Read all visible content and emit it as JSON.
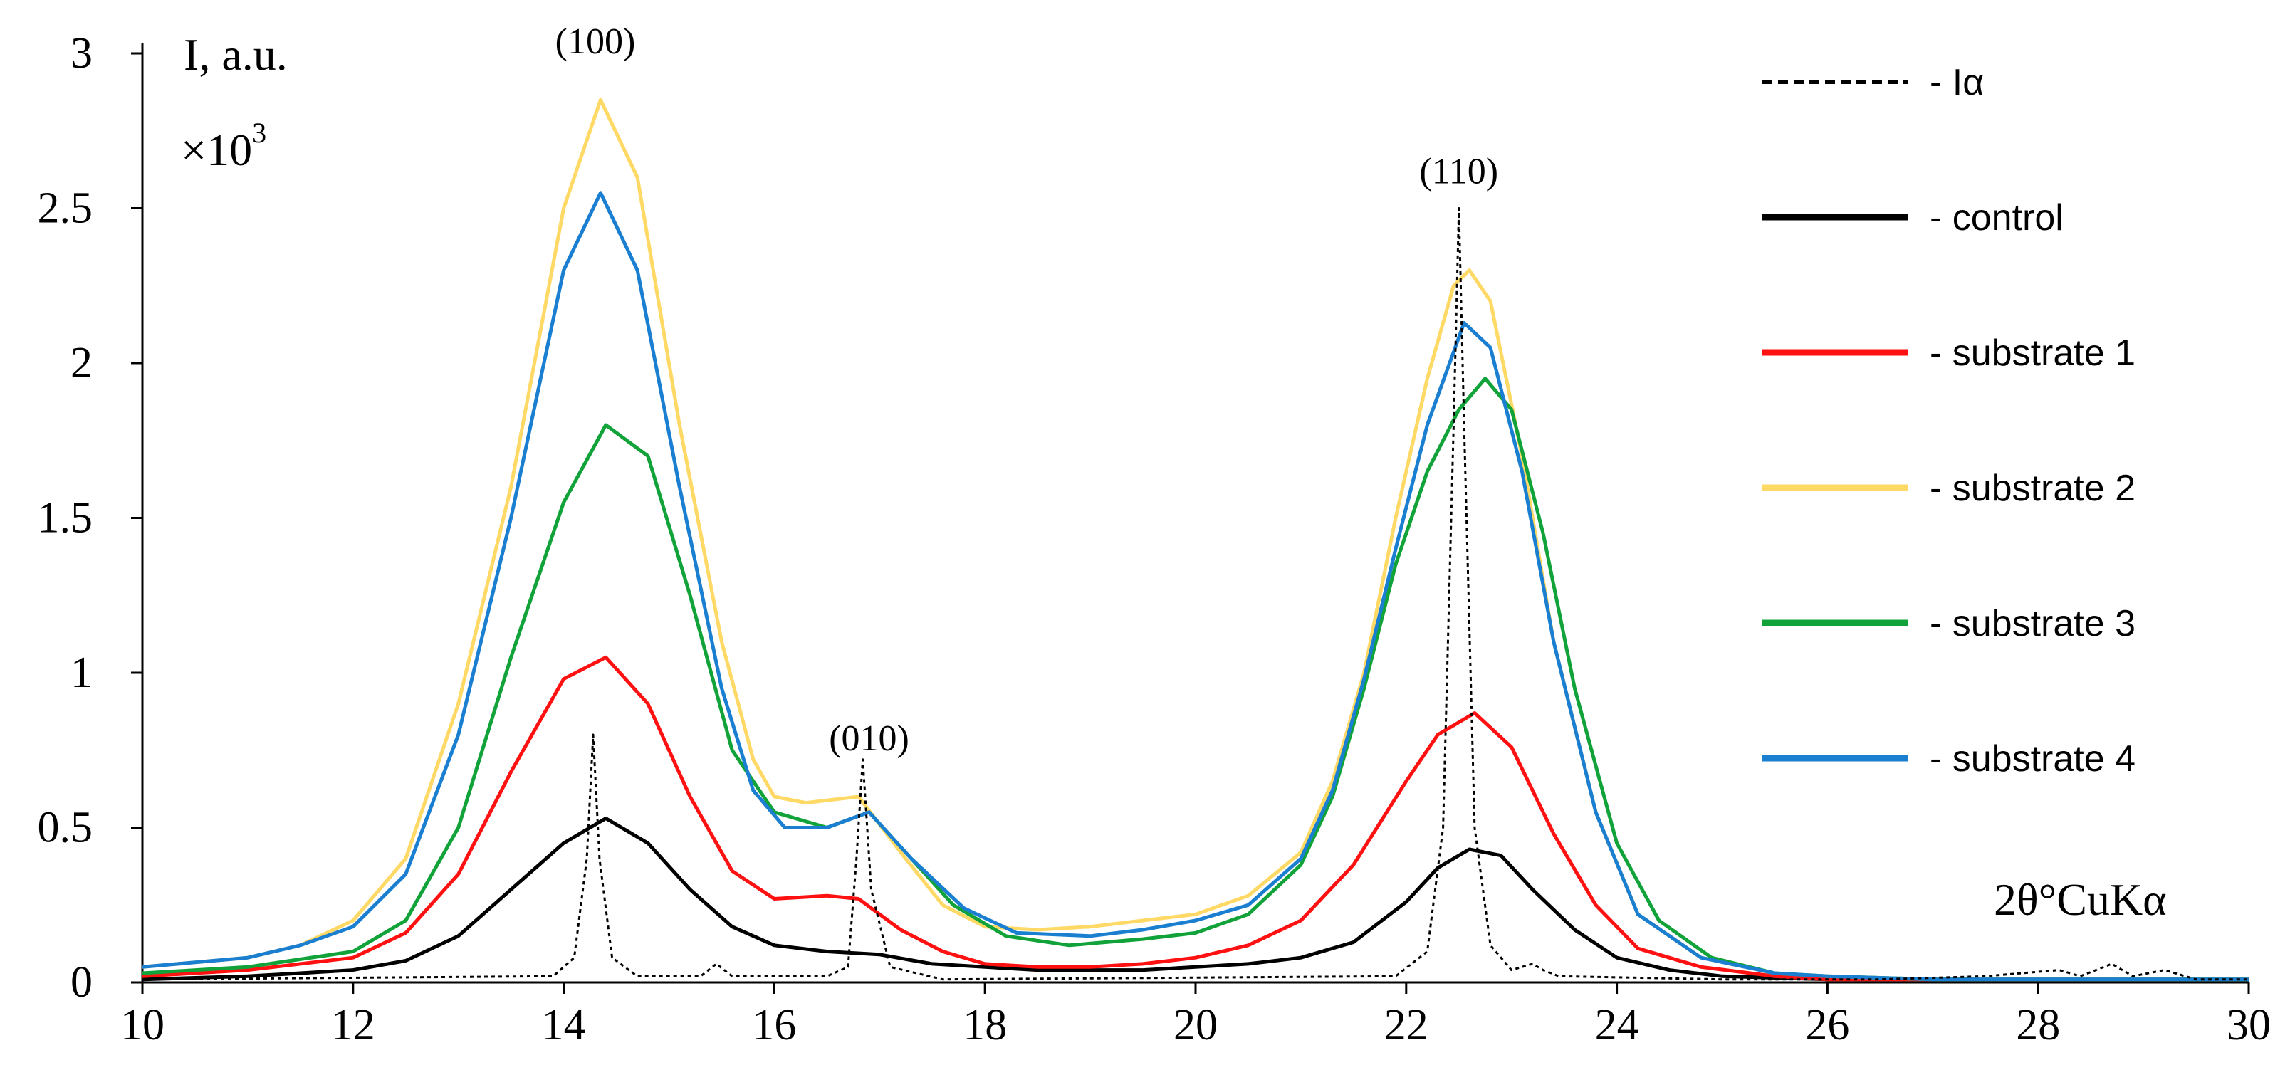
{
  "chart_data": {
    "type": "line",
    "ylabel": "I, a.u.",
    "yscale_label": "×10",
    "yscale_exponent": "3",
    "xlabel": "2θ°CuKα",
    "xlim": [
      10,
      30
    ],
    "ylim": [
      0,
      3
    ],
    "xticks": [
      "10",
      "12",
      "14",
      "16",
      "18",
      "20",
      "22",
      "24",
      "26",
      "28",
      "30"
    ],
    "yticks": [
      "0",
      "0.5",
      "1",
      "1.5",
      "2",
      "2.5",
      "3"
    ],
    "peak_labels": [
      {
        "text": "(100)",
        "x": 14.3,
        "y": 3.0
      },
      {
        "text": "(010)",
        "x": 16.9,
        "y": 0.75
      },
      {
        "text": "(110)",
        "x": 22.5,
        "y": 2.58
      }
    ],
    "series": [
      {
        "name": "- Iα",
        "color": "#000000",
        "dashed": true,
        "x": [
          10,
          13.9,
          14.1,
          14.22,
          14.28,
          14.34,
          14.46,
          14.7,
          15.3,
          15.45,
          15.6,
          16.5,
          16.7,
          16.78,
          16.84,
          16.92,
          17.1,
          17.6,
          21.9,
          22.2,
          22.35,
          22.45,
          22.5,
          22.55,
          22.65,
          22.8,
          23.0,
          23.2,
          23.3,
          23.45,
          25,
          26.5,
          27.5,
          28.2,
          28.4,
          28.7,
          28.9,
          29.2,
          29.5,
          30
        ],
        "values": [
          0.01,
          0.02,
          0.08,
          0.4,
          0.8,
          0.4,
          0.08,
          0.02,
          0.02,
          0.06,
          0.02,
          0.02,
          0.05,
          0.4,
          0.72,
          0.3,
          0.05,
          0.01,
          0.02,
          0.1,
          0.5,
          1.8,
          2.5,
          1.8,
          0.5,
          0.12,
          0.04,
          0.06,
          0.04,
          0.02,
          0.01,
          0.01,
          0.02,
          0.04,
          0.02,
          0.06,
          0.02,
          0.04,
          0.01,
          0.01
        ]
      },
      {
        "name": "- control",
        "color": "#000000",
        "dashed": false,
        "x": [
          10,
          11,
          12,
          12.5,
          13,
          13.5,
          14,
          14.4,
          14.8,
          15.2,
          15.6,
          16,
          16.5,
          17,
          17.5,
          18,
          18.5,
          19,
          19.5,
          20,
          20.5,
          21,
          21.5,
          22,
          22.3,
          22.6,
          22.9,
          23.2,
          23.6,
          24,
          24.5,
          25,
          26,
          27,
          28,
          30
        ],
        "values": [
          0.01,
          0.02,
          0.04,
          0.07,
          0.15,
          0.3,
          0.45,
          0.53,
          0.45,
          0.3,
          0.18,
          0.12,
          0.1,
          0.09,
          0.06,
          0.05,
          0.04,
          0.04,
          0.04,
          0.05,
          0.06,
          0.08,
          0.13,
          0.26,
          0.37,
          0.43,
          0.41,
          0.3,
          0.17,
          0.08,
          0.04,
          0.02,
          0.01,
          0.01,
          0.01,
          0.01
        ]
      },
      {
        "name": "- substrate 1",
        "color": "#ff1111",
        "dashed": false,
        "x": [
          10,
          11,
          12,
          12.5,
          13,
          13.5,
          14,
          14.4,
          14.8,
          15.2,
          15.6,
          16,
          16.5,
          16.8,
          17.2,
          17.6,
          18,
          18.5,
          19,
          19.5,
          20,
          20.5,
          21,
          21.5,
          22,
          22.3,
          22.65,
          23,
          23.4,
          23.8,
          24.2,
          24.8,
          25.5,
          26,
          27,
          28,
          30
        ],
        "values": [
          0.02,
          0.04,
          0.08,
          0.16,
          0.35,
          0.68,
          0.98,
          1.05,
          0.9,
          0.6,
          0.36,
          0.27,
          0.28,
          0.27,
          0.17,
          0.1,
          0.06,
          0.05,
          0.05,
          0.06,
          0.08,
          0.12,
          0.2,
          0.38,
          0.65,
          0.8,
          0.87,
          0.76,
          0.48,
          0.25,
          0.11,
          0.05,
          0.02,
          0.01,
          0.01,
          0.01,
          0.01
        ]
      },
      {
        "name": "- substrate 2",
        "color": "#ffd966",
        "dashed": false,
        "x": [
          10,
          11,
          11.5,
          12,
          12.5,
          13,
          13.5,
          14,
          14.35,
          14.7,
          15.1,
          15.5,
          15.8,
          16,
          16.3,
          16.8,
          17.2,
          17.6,
          18,
          18.5,
          19,
          19.5,
          20,
          20.5,
          21,
          21.3,
          21.6,
          21.9,
          22.2,
          22.45,
          22.6,
          22.8,
          23.1,
          23.4,
          23.8,
          24.2,
          24.8,
          25.5,
          26,
          27,
          28,
          30
        ],
        "values": [
          0.05,
          0.08,
          0.12,
          0.2,
          0.4,
          0.9,
          1.6,
          2.5,
          2.85,
          2.6,
          1.8,
          1.1,
          0.72,
          0.6,
          0.58,
          0.6,
          0.42,
          0.25,
          0.18,
          0.17,
          0.18,
          0.2,
          0.22,
          0.28,
          0.42,
          0.65,
          1.0,
          1.5,
          1.95,
          2.25,
          2.3,
          2.2,
          1.7,
          1.1,
          0.55,
          0.22,
          0.08,
          0.03,
          0.02,
          0.01,
          0.01,
          0.01
        ]
      },
      {
        "name": "- substrate 3",
        "color": "#11a33a",
        "dashed": false,
        "x": [
          10,
          11,
          12,
          12.5,
          13,
          13.5,
          14,
          14.4,
          14.8,
          15.2,
          15.6,
          16,
          16.5,
          16.9,
          17.3,
          17.7,
          18.2,
          18.8,
          19.5,
          20,
          20.5,
          21,
          21.3,
          21.6,
          21.9,
          22.2,
          22.5,
          22.75,
          23,
          23.3,
          23.6,
          24,
          24.4,
          24.9,
          25.5,
          26,
          27,
          28,
          30
        ],
        "values": [
          0.03,
          0.05,
          0.1,
          0.2,
          0.5,
          1.05,
          1.55,
          1.8,
          1.7,
          1.25,
          0.75,
          0.55,
          0.5,
          0.55,
          0.4,
          0.25,
          0.15,
          0.12,
          0.14,
          0.16,
          0.22,
          0.38,
          0.6,
          0.95,
          1.35,
          1.65,
          1.85,
          1.95,
          1.85,
          1.45,
          0.95,
          0.45,
          0.2,
          0.08,
          0.03,
          0.02,
          0.01,
          0.01,
          0.01
        ]
      },
      {
        "name": "- substrate 4",
        "color": "#1a7fd1",
        "dashed": false,
        "x": [
          10,
          11,
          11.5,
          12,
          12.5,
          13,
          13.5,
          14,
          14.35,
          14.7,
          15.1,
          15.5,
          15.8,
          16.1,
          16.5,
          16.9,
          17.3,
          17.8,
          18.3,
          19,
          19.5,
          20,
          20.5,
          21,
          21.3,
          21.6,
          21.9,
          22.2,
          22.55,
          22.8,
          23.1,
          23.4,
          23.8,
          24.2,
          24.8,
          25.5,
          26,
          27,
          28,
          30
        ],
        "values": [
          0.05,
          0.08,
          0.12,
          0.18,
          0.35,
          0.8,
          1.5,
          2.3,
          2.55,
          2.3,
          1.6,
          0.95,
          0.62,
          0.5,
          0.5,
          0.55,
          0.4,
          0.24,
          0.16,
          0.15,
          0.17,
          0.2,
          0.25,
          0.4,
          0.62,
          0.98,
          1.4,
          1.8,
          2.13,
          2.05,
          1.65,
          1.1,
          0.55,
          0.22,
          0.08,
          0.03,
          0.02,
          0.01,
          0.01,
          0.01
        ]
      }
    ]
  }
}
